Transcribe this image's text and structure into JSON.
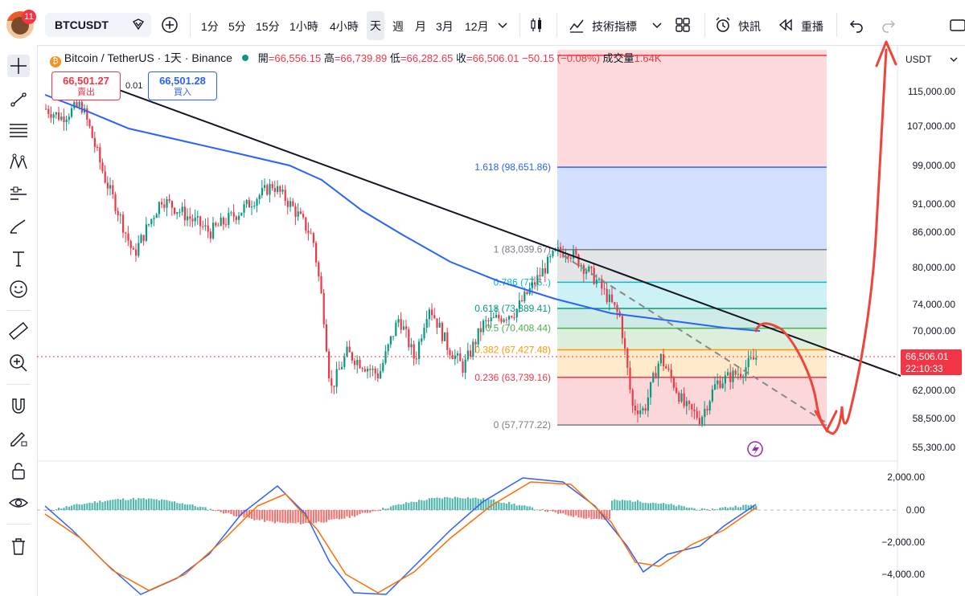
{
  "header": {
    "notifications": "11",
    "symbol": "BTCUSDT",
    "timeframes": [
      "1分",
      "5分",
      "15分",
      "1小時",
      "4小時",
      "天",
      "週",
      "月",
      "3月",
      "12月"
    ],
    "active_timeframe_index": 5,
    "indicators_label": "技術指標",
    "alert_label": "快訊",
    "replay_label": "重播"
  },
  "legend": {
    "name": "Bitcoin / TetherUS · 1天 · Binance",
    "open_label": "開",
    "open": "=66,556.15",
    "high_label": "高",
    "high": "=66,739.89",
    "low_label": "低",
    "low": "=66,282.65",
    "close_label": "收",
    "close": "=66,506.01",
    "change": "−50.15 (−0.08%)",
    "volume_label": "成交量",
    "volume": "1.64K"
  },
  "trade": {
    "sell_price": "66,501.27",
    "sell_label": "賣出",
    "spread": "0.01",
    "buy_price": "66,501.28",
    "buy_label": "買入"
  },
  "price_axis": {
    "currency": "USDT",
    "ticks": [
      "115,000.00",
      "107,000.00",
      "99,000.00",
      "91,000.00",
      "86,000.00",
      "80,000.00",
      "74,000.00",
      "70,000.00",
      "62,000.00",
      "58,500.00",
      "55,300.00"
    ],
    "last_price": "66,506.01",
    "countdown": "22:10:33"
  },
  "fib_levels": [
    {
      "label": "1.618 (98,651.86)",
      "price": 98651.86,
      "color": "#2962ff"
    },
    {
      "label": "1 (83,039.67)",
      "price": 83039.67,
      "color": "#787b86"
    },
    {
      "label": "0.786 (77,6..)",
      "price": 77600,
      "color": "#00bcd4"
    },
    {
      "label": "0.618 (73,389.41)",
      "price": 73389.41,
      "color": "#089981"
    },
    {
      "label": "0.5 (70,408.44)",
      "price": 70408.44,
      "color": "#4caf50"
    },
    {
      "label": "0.382 (67,427.48)",
      "price": 67427.48,
      "color": "#ff9800"
    },
    {
      "label": "0.236 (63,739.16)",
      "price": 63739.16,
      "color": "#f23645"
    },
    {
      "label": "0 (57,777.22)",
      "price": 57777.22,
      "color": "#787b86"
    }
  ],
  "macd_axis": {
    "ticks": [
      "2,000.00",
      "0.00",
      "−2,000.00",
      "−4,000.00"
    ]
  },
  "colors": {
    "up": "#089981",
    "down": "#f23645",
    "ma": "#2962ff",
    "annotation": "#f0433a"
  }
}
